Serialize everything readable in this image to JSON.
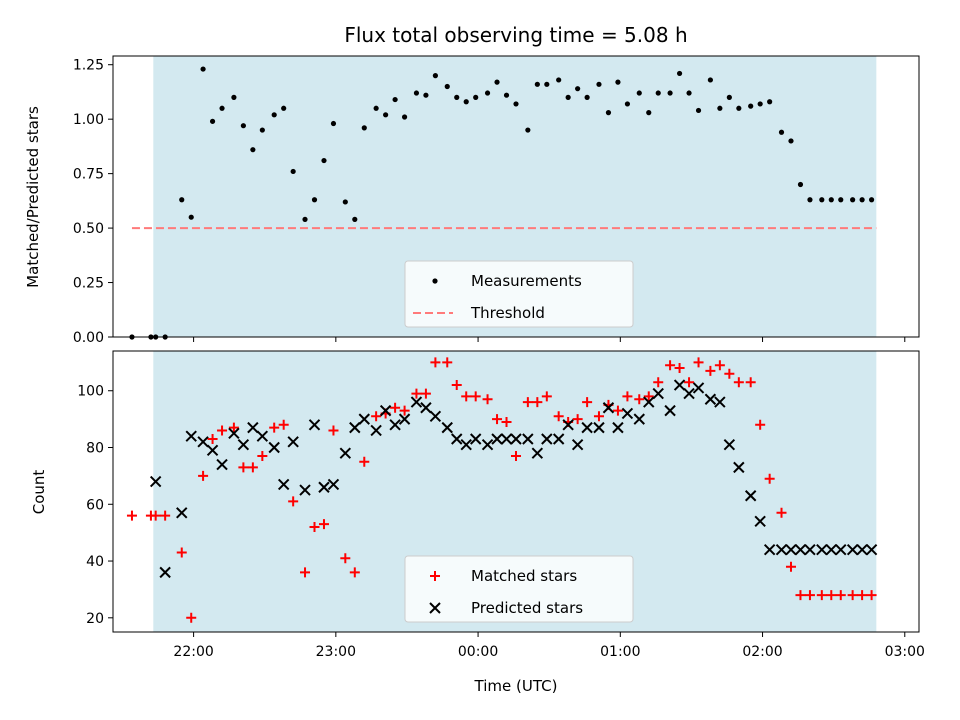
{
  "chart_data": [
    {
      "type": "scatter",
      "title": "Flux total observing time = 5.08 h",
      "xlabel": "",
      "ylabel": "Matched/Predicted stars",
      "xlim": [
        "21:26",
        "03:06"
      ],
      "ylim": [
        0,
        1.29
      ],
      "yticks": [
        "0.00",
        "0.25",
        "0.50",
        "0.75",
        "1.00",
        "1.25"
      ],
      "shaded_span": [
        "21:43",
        "02:48"
      ],
      "shade_color": "#d3e9f0",
      "series": [
        {
          "name": "Measurements",
          "marker": "dot",
          "color": "#000000",
          "x": [
            "21:34",
            "21:42",
            "21:44",
            "21:48",
            "21:55",
            "21:59",
            "22:04",
            "22:08",
            "22:12",
            "22:17",
            "22:21",
            "22:25",
            "22:29",
            "22:34",
            "22:38",
            "22:42",
            "22:47",
            "22:51",
            "22:55",
            "22:59",
            "23:04",
            "23:08",
            "23:12",
            "23:17",
            "23:21",
            "23:25",
            "23:29",
            "23:34",
            "23:38",
            "23:42",
            "23:47",
            "23:51",
            "23:55",
            "23:59",
            "00:04",
            "00:08",
            "00:12",
            "00:16",
            "00:21",
            "00:25",
            "00:29",
            "00:34",
            "00:38",
            "00:42",
            "00:46",
            "00:51",
            "00:55",
            "00:59",
            "01:03",
            "01:08",
            "01:12",
            "01:16",
            "01:21",
            "01:25",
            "01:29",
            "01:33",
            "01:38",
            "01:42",
            "01:46",
            "01:50",
            "01:55",
            "01:59",
            "02:03",
            "02:08",
            "02:12",
            "02:16",
            "02:20",
            "02:25",
            "02:29",
            "02:33",
            "02:38",
            "02:42",
            "02:46"
          ],
          "y": [
            0.0,
            0.0,
            0.0,
            0.0,
            0.63,
            0.55,
            1.23,
            0.99,
            1.05,
            1.1,
            0.97,
            0.86,
            0.95,
            1.02,
            1.05,
            0.76,
            0.54,
            0.63,
            0.81,
            0.98,
            0.62,
            0.54,
            0.96,
            1.05,
            1.02,
            1.09,
            1.01,
            1.12,
            1.11,
            1.2,
            1.15,
            1.1,
            1.08,
            1.1,
            1.12,
            1.17,
            1.11,
            1.07,
            0.95,
            1.16,
            1.16,
            1.18,
            1.1,
            1.14,
            1.1,
            1.16,
            1.03,
            1.17,
            1.07,
            1.12,
            1.03,
            1.12,
            1.12,
            1.21,
            1.12,
            1.04,
            1.18,
            1.05,
            1.1,
            1.05,
            1.06,
            1.07,
            1.08,
            0.94,
            0.9,
            0.7,
            0.63,
            0.63,
            0.63,
            0.63,
            0.63,
            0.63,
            0.63
          ]
        },
        {
          "name": "Threshold",
          "style": "dashed",
          "color": "#ff7a7a",
          "x": [
            "21:34",
            "02:48"
          ],
          "y": [
            0.5,
            0.5
          ]
        }
      ],
      "legend": {
        "placement": "lower-center",
        "entries": [
          "Measurements",
          "Threshold"
        ]
      }
    },
    {
      "type": "scatter",
      "title": "",
      "xlabel": "Time (UTC)",
      "ylabel": "Count",
      "xlim": [
        "21:26",
        "03:06"
      ],
      "ylim": [
        15,
        114
      ],
      "yticks": [
        "20",
        "40",
        "60",
        "80",
        "100"
      ],
      "xticks": [
        "22:00",
        "23:00",
        "00:00",
        "01:00",
        "02:00",
        "03:00"
      ],
      "shaded_span": [
        "21:43",
        "02:48"
      ],
      "shade_color": "#d3e9f0",
      "series": [
        {
          "name": "Matched stars",
          "marker": "plus",
          "color": "#ff0000",
          "x": [
            "21:34",
            "21:42",
            "21:44",
            "21:48",
            "21:55",
            "21:59",
            "22:04",
            "22:08",
            "22:12",
            "22:17",
            "22:21",
            "22:25",
            "22:29",
            "22:34",
            "22:38",
            "22:42",
            "22:47",
            "22:51",
            "22:55",
            "22:59",
            "23:04",
            "23:08",
            "23:12",
            "23:17",
            "23:21",
            "23:25",
            "23:29",
            "23:34",
            "23:38",
            "23:42",
            "23:47",
            "23:51",
            "23:55",
            "23:59",
            "00:04",
            "00:08",
            "00:12",
            "00:16",
            "00:21",
            "00:25",
            "00:29",
            "00:34",
            "00:38",
            "00:42",
            "00:46",
            "00:51",
            "00:55",
            "00:59",
            "01:03",
            "01:08",
            "01:12",
            "01:16",
            "01:21",
            "01:25",
            "01:29",
            "01:33",
            "01:38",
            "01:42",
            "01:46",
            "01:50",
            "01:55",
            "01:59",
            "02:03",
            "02:08",
            "02:12",
            "02:16",
            "02:20",
            "02:25",
            "02:29",
            "02:33",
            "02:38",
            "02:42",
            "02:46"
          ],
          "y": [
            56,
            56,
            56,
            56,
            43,
            20,
            70,
            83,
            86,
            87,
            73,
            73,
            77,
            87,
            88,
            61,
            36,
            52,
            53,
            86,
            41,
            36,
            75,
            91,
            92,
            94,
            93,
            99,
            99,
            110,
            110,
            102,
            98,
            98,
            97,
            90,
            89,
            77,
            96,
            96,
            98,
            91,
            89,
            90,
            96,
            91,
            95,
            93,
            98,
            97,
            98,
            103,
            109,
            108,
            103,
            110,
            107,
            109,
            106,
            103,
            103,
            88,
            69,
            57,
            38,
            28,
            28,
            28,
            28,
            28,
            28,
            28,
            28
          ]
        },
        {
          "name": "Predicted stars",
          "marker": "x",
          "color": "#000000",
          "x": [
            "21:44",
            "21:48",
            "21:55",
            "21:59",
            "22:04",
            "22:08",
            "22:12",
            "22:17",
            "22:21",
            "22:25",
            "22:29",
            "22:34",
            "22:38",
            "22:42",
            "22:47",
            "22:51",
            "22:55",
            "22:59",
            "23:04",
            "23:08",
            "23:12",
            "23:17",
            "23:21",
            "23:25",
            "23:29",
            "23:34",
            "23:38",
            "23:42",
            "23:47",
            "23:51",
            "23:55",
            "23:59",
            "00:04",
            "00:08",
            "00:12",
            "00:16",
            "00:21",
            "00:25",
            "00:29",
            "00:34",
            "00:38",
            "00:42",
            "00:46",
            "00:51",
            "00:55",
            "00:59",
            "01:03",
            "01:08",
            "01:12",
            "01:16",
            "01:21",
            "01:25",
            "01:29",
            "01:33",
            "01:38",
            "01:42",
            "01:46",
            "01:50",
            "01:55",
            "01:59",
            "02:03",
            "02:08",
            "02:12",
            "02:16",
            "02:20",
            "02:25",
            "02:29",
            "02:33",
            "02:38",
            "02:42",
            "02:46"
          ],
          "y": [
            68,
            36,
            57,
            84,
            82,
            79,
            74,
            85,
            81,
            87,
            84,
            80,
            67,
            82,
            65,
            88,
            66,
            67,
            78,
            87,
            90,
            86,
            93,
            88,
            90,
            96,
            94,
            91,
            87,
            83,
            81,
            83,
            81,
            83,
            83,
            83,
            83,
            78,
            83,
            83,
            88,
            81,
            87,
            87,
            94,
            87,
            92,
            90,
            96,
            99,
            93,
            102,
            99,
            101,
            97,
            96,
            81,
            73,
            63,
            54,
            44,
            44,
            44,
            44,
            44,
            44,
            44,
            44,
            44,
            44,
            44
          ]
        }
      ],
      "legend": {
        "placement": "lower-center",
        "entries": [
          "Matched stars",
          "Predicted stars"
        ]
      }
    }
  ]
}
